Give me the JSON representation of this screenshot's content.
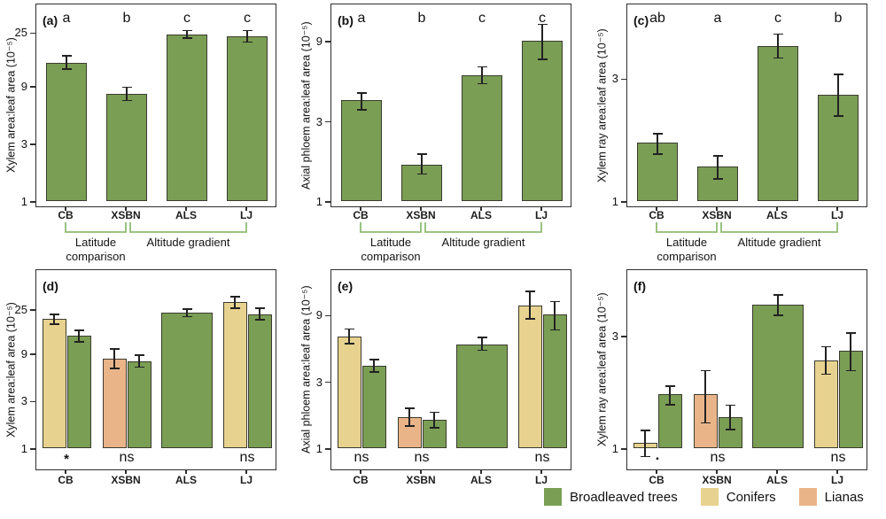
{
  "figure": {
    "background": "#ffffff",
    "frame_color": "#2e2e2e",
    "bar_edge_color": "#3b3b30",
    "error_bar_color": "#222222",
    "bracket_color": "#8fbc72",
    "text_color": "#111111"
  },
  "legend": {
    "items": [
      {
        "series": "broadleaved",
        "label": "Broadleaved trees",
        "color": "#7a9e54"
      },
      {
        "series": "conifers",
        "label": "Conifers",
        "color": "#e8d28f"
      },
      {
        "series": "lianas",
        "label": "Lianas",
        "color": "#eab489"
      }
    ]
  },
  "annotations": {
    "latitude": {
      "label": "Latitude\ncomparison",
      "from": "CB",
      "to": "XSBN"
    },
    "altitude": {
      "label": "Altitude gradient",
      "from": "XSBN",
      "to": "LJ"
    }
  },
  "chart_data": {
    "type": "bar",
    "y_scale": "log",
    "x_categories": [
      "CB",
      "XSBN",
      "ALS",
      "LJ"
    ],
    "panels": [
      {
        "id": "a",
        "tag": "(a)",
        "row": "top",
        "ylabel": "Xylem area:leaf area (10⁻⁵)",
        "yticks": [
          1,
          3,
          9,
          25
        ],
        "ytop": 44,
        "sig_letters": [
          "a",
          "b",
          "c",
          "c"
        ],
        "bars": [
          {
            "cat": "CB",
            "series": "broadleaved",
            "value": 14.0,
            "lo": 12.4,
            "hi": 16.0
          },
          {
            "cat": "XSBN",
            "series": "broadleaved",
            "value": 7.7,
            "lo": 6.8,
            "hi": 8.8
          },
          {
            "cat": "ALS",
            "series": "broadleaved",
            "value": 24.0,
            "lo": 22.3,
            "hi": 25.8
          },
          {
            "cat": "LJ",
            "series": "broadleaved",
            "value": 23.3,
            "lo": 20.8,
            "hi": 25.9
          }
        ]
      },
      {
        "id": "b",
        "tag": "(b)",
        "row": "top",
        "ylabel": "Axial phloem area:leaf area (10⁻⁵)",
        "yticks": [
          1,
          3,
          9
        ],
        "ytop": 15.2,
        "sig_letters": [
          "a",
          "b",
          "c",
          "c"
        ],
        "bars": [
          {
            "cat": "CB",
            "series": "broadleaved",
            "value": 4.0,
            "lo": 3.5,
            "hi": 4.4
          },
          {
            "cat": "XSBN",
            "series": "broadleaved",
            "value": 1.65,
            "lo": 1.45,
            "hi": 1.9
          },
          {
            "cat": "ALS",
            "series": "broadleaved",
            "value": 5.6,
            "lo": 5.0,
            "hi": 6.3
          },
          {
            "cat": "LJ",
            "series": "broadleaved",
            "value": 9.0,
            "lo": 7.0,
            "hi": 11.3
          }
        ]
      },
      {
        "id": "c",
        "tag": "(c)",
        "row": "top",
        "ylabel": "Xylem ray area:leaf area (10⁻⁵)",
        "yticks": [
          1,
          3
        ],
        "ytop": 5.9,
        "sig_letters": [
          "ab",
          "a",
          "c",
          "b"
        ],
        "bars": [
          {
            "cat": "CB",
            "series": "broadleaved",
            "value": 1.69,
            "lo": 1.52,
            "hi": 1.83
          },
          {
            "cat": "XSBN",
            "series": "broadleaved",
            "value": 1.36,
            "lo": 1.22,
            "hi": 1.5
          },
          {
            "cat": "ALS",
            "series": "broadleaved",
            "value": 4.0,
            "lo": 3.6,
            "hi": 4.45
          },
          {
            "cat": "LJ",
            "series": "broadleaved",
            "value": 2.58,
            "lo": 2.14,
            "hi": 3.1
          }
        ]
      },
      {
        "id": "d",
        "tag": "(d)",
        "row": "bottom",
        "ylabel": "Xylem area:leaf area (10⁻⁵)",
        "yticks": [
          1,
          3,
          9,
          25
        ],
        "ytop": 64,
        "sig_markers": [
          "*",
          "ns",
          "",
          "ns"
        ],
        "bars": [
          {
            "cat": "CB",
            "series": "conifers",
            "value": 20.0,
            "lo": 17.6,
            "hi": 22.1
          },
          {
            "cat": "CB",
            "series": "broadleaved",
            "value": 13.5,
            "lo": 11.7,
            "hi": 15.3
          },
          {
            "cat": "XSBN",
            "series": "lianas",
            "value": 8.0,
            "lo": 6.3,
            "hi": 9.9
          },
          {
            "cat": "XSBN",
            "series": "broadleaved",
            "value": 7.5,
            "lo": 6.5,
            "hi": 8.6
          },
          {
            "cat": "ALS",
            "series": "broadleaved",
            "value": 23.0,
            "lo": 21.0,
            "hi": 25.0
          },
          {
            "cat": "LJ",
            "series": "conifers",
            "value": 29.5,
            "lo": 25.5,
            "hi": 33.3
          },
          {
            "cat": "LJ",
            "series": "broadleaved",
            "value": 22.1,
            "lo": 19.6,
            "hi": 25.5
          }
        ]
      },
      {
        "id": "e",
        "tag": "(e)",
        "row": "bottom",
        "ylabel": "Axial phloem area:leaf area (10⁻⁵)",
        "yticks": [
          1,
          3,
          9
        ],
        "ytop": 19.3,
        "sig_markers": [
          "ns",
          "ns",
          "",
          "ns"
        ],
        "bars": [
          {
            "cat": "CB",
            "series": "conifers",
            "value": 6.3,
            "lo": 5.6,
            "hi": 7.1
          },
          {
            "cat": "CB",
            "series": "broadleaved",
            "value": 3.9,
            "lo": 3.5,
            "hi": 4.3
          },
          {
            "cat": "XSBN",
            "series": "lianas",
            "value": 1.67,
            "lo": 1.44,
            "hi": 1.93
          },
          {
            "cat": "XSBN",
            "series": "broadleaved",
            "value": 1.6,
            "lo": 1.4,
            "hi": 1.8
          },
          {
            "cat": "ALS",
            "series": "broadleaved",
            "value": 5.5,
            "lo": 5.0,
            "hi": 6.2
          },
          {
            "cat": "LJ",
            "series": "conifers",
            "value": 10.4,
            "lo": 8.4,
            "hi": 13.2
          },
          {
            "cat": "LJ",
            "series": "broadleaved",
            "value": 9.0,
            "lo": 7.0,
            "hi": 11.2
          }
        ]
      },
      {
        "id": "f",
        "tag": "(f)",
        "row": "bottom",
        "ylabel": "Xylem ray area:leaf area (10⁻⁵)",
        "yticks": [
          1,
          3
        ],
        "ytop": 5.8,
        "sig_markers": [
          ".",
          "ns",
          "",
          "ns"
        ],
        "bars": [
          {
            "cat": "CB",
            "series": "conifers",
            "value": 1.05,
            "lo": 0.92,
            "hi": 1.19
          },
          {
            "cat": "CB",
            "series": "broadleaved",
            "value": 1.69,
            "lo": 1.53,
            "hi": 1.83
          },
          {
            "cat": "XSBN",
            "series": "lianas",
            "value": 1.69,
            "lo": 1.28,
            "hi": 2.13
          },
          {
            "cat": "XSBN",
            "series": "broadleaved",
            "value": 1.36,
            "lo": 1.2,
            "hi": 1.52
          },
          {
            "cat": "ALS",
            "series": "broadleaved",
            "value": 4.05,
            "lo": 3.67,
            "hi": 4.48
          },
          {
            "cat": "LJ",
            "series": "conifers",
            "value": 2.35,
            "lo": 2.06,
            "hi": 2.7
          },
          {
            "cat": "LJ",
            "series": "broadleaved",
            "value": 2.59,
            "lo": 2.13,
            "hi": 3.08
          }
        ]
      }
    ]
  }
}
